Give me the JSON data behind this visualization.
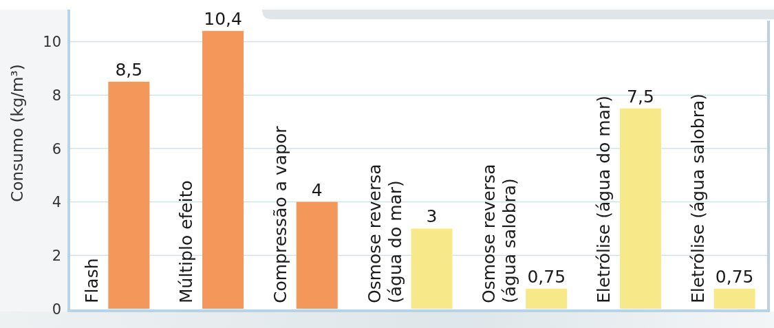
{
  "chart_data": {
    "type": "bar",
    "ylabel": "Consumo (kg/m³)",
    "categories": [
      "Flash",
      "Múltiplo efeito",
      "Compressão a vapor",
      "Osmose reversa (água do mar)",
      "Osmose reversa (água salobra)",
      "Eletrólise (água do mar)",
      "Eletrólise (água salobra)"
    ],
    "values": [
      8.5,
      10.4,
      4,
      3,
      0.75,
      7.5,
      0.75
    ],
    "colors": [
      "#f4975a",
      "#f4975a",
      "#f4975a",
      "#f7e98a",
      "#f7e98a",
      "#f7e98a",
      "#f7e98a"
    ],
    "value_labels": [
      "8,5",
      "10,4",
      "4",
      "3",
      "0,75",
      "7,5",
      "0,75"
    ],
    "ylim": [
      0,
      11.2
    ],
    "yticks": [
      0,
      2,
      4,
      6,
      8,
      10
    ],
    "grid": "y"
  }
}
